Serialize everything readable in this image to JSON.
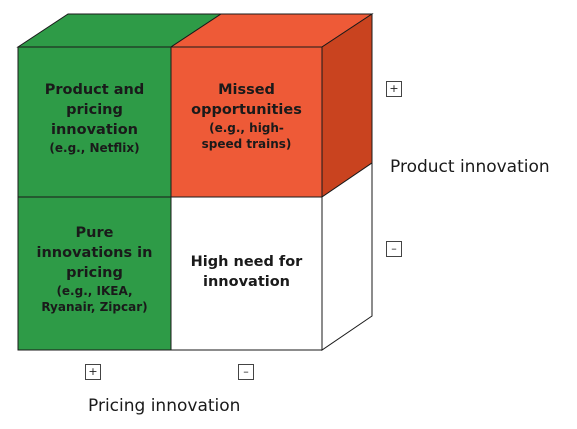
{
  "colors": {
    "green": "#2e9b47",
    "green_dark": "#1e7a34",
    "red": "#ee5a37",
    "red_dark": "#c9431f",
    "white": "#ffffff",
    "edge": "#1a1a1a"
  },
  "quadrants": {
    "top_left": {
      "lines": [
        "Product and",
        "pricing",
        "innovation"
      ],
      "example": "(e.g., Netflix)"
    },
    "top_right": {
      "lines": [
        "Missed",
        "opportunities"
      ],
      "example_lines": [
        "(e.g., high-",
        "speed trains)"
      ]
    },
    "bottom_left": {
      "lines": [
        "Pure",
        "innovations in",
        "pricing"
      ],
      "example_lines": [
        "(e.g., IKEA,",
        "Ryanair, Zipcar)"
      ]
    },
    "bottom_right": {
      "lines": [
        "High need for",
        "innovation"
      ]
    }
  },
  "axes": {
    "product": {
      "label": "Product innovation",
      "plus": "+",
      "minus": "–"
    },
    "pricing": {
      "label": "Pricing innovation",
      "plus": "+",
      "minus": "–"
    }
  }
}
